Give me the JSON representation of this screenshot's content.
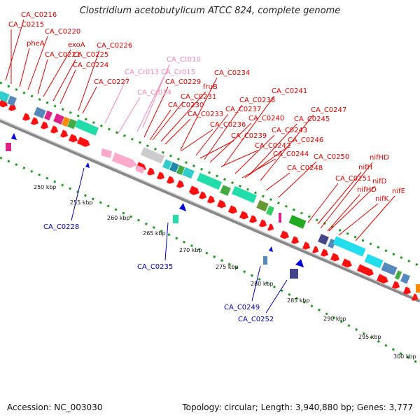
{
  "title": "Clostridium acetobutylicum ATCC 824, complete genome",
  "footer": {
    "accession": "Accession: NC_003030",
    "stats": "Topology: circular; Length: 3,940,880 bp; Genes: 3,777"
  },
  "colors": {
    "gene_red": "#ff1010",
    "gene_blue": "#0000cc",
    "label_red": "#dd0000",
    "label_blue": "#0000aa",
    "label_pink": "#ee88bb",
    "backbone": "#999999",
    "dots": "#229922"
  },
  "ruler": {
    "unit": "kbp",
    "ticks": [
      "250 kbp",
      "255 kbp",
      "260 kbp",
      "265 kbp",
      "270 kbp",
      "275 kbp",
      "280 kbp",
      "285 kbp",
      "290 kbp",
      "295 kbp",
      "300 kbp"
    ]
  },
  "labels_forward": [
    "CA_C0216",
    "CA_C0215",
    "CA_C0220",
    "pheA",
    "exoA",
    "CA_C0221",
    "CA_C0226",
    "CA_C0225",
    "CA_C0224",
    "CA_C0227",
    "CA_C0229",
    "fruB",
    "CA_C0234",
    "CA_C0231",
    "CA_C0230",
    "CA_C0233",
    "CA_C0238",
    "CA_C0241",
    "CA_C0237",
    "CA_C0236",
    "CA_C0240",
    "CA_C0239",
    "CA_C0243",
    "CA_C0247",
    "CA_C0245",
    "CA_C0246",
    "CA_C0242",
    "CA_C0244",
    "CA_C0250",
    "CA_C0248",
    "nifHD",
    "nifH",
    "nifD",
    "CA_C0251",
    "nifHD",
    "nifE",
    "nifK"
  ],
  "labels_rna": [
    "CA_Ct010",
    "CA_Cr013",
    "CA_Cr015",
    "CA_Cr014"
  ],
  "labels_reverse": [
    "CA_C0228",
    "CA_C0235",
    "CA_C0249",
    "CA_C0252"
  ]
}
